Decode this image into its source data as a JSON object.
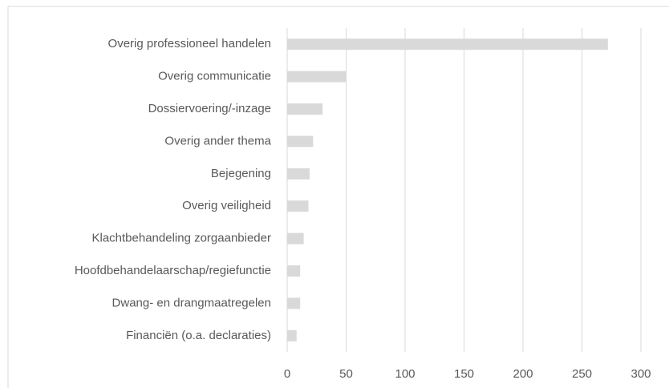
{
  "chart_data": {
    "type": "barh",
    "categories": [
      "Overig professioneel handelen",
      "Overig communicatie",
      "Dossiervoering/-inzage",
      "Overig ander thema",
      "Bejegening",
      "Overig veiligheid",
      "Klachtbehandeling zorgaanbieder",
      "Hoofdbehandelaarschap/regiefunctie",
      "Dwang- en drangmaatregelen",
      "Financiën (o.a. declaraties)"
    ],
    "values": [
      272,
      50,
      30,
      22,
      19,
      18,
      14,
      11,
      11,
      8
    ],
    "color": "#d9d9d9",
    "xlim": [
      0,
      300
    ],
    "xticks": [
      0,
      50,
      100,
      150,
      200,
      250,
      300
    ],
    "grid": true
  }
}
